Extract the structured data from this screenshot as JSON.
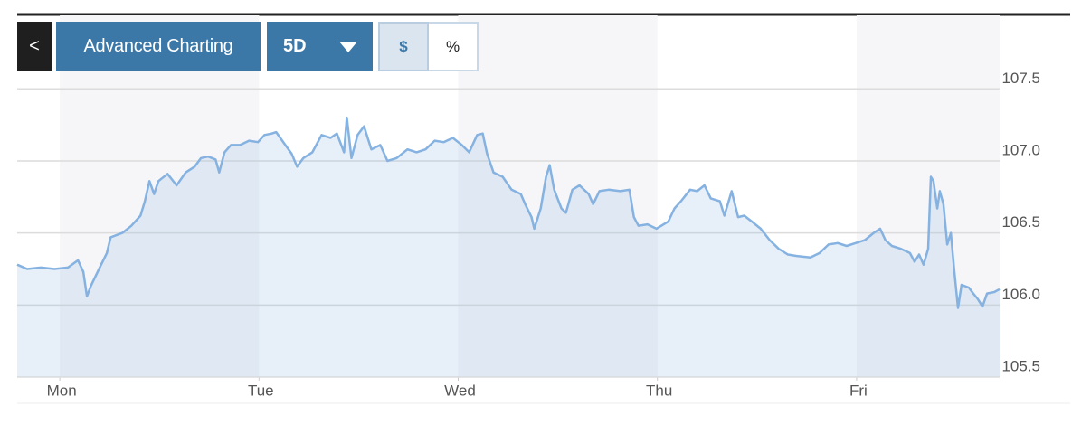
{
  "toolbar": {
    "back": "<",
    "advanced": "Advanced Charting",
    "range": "5D",
    "dollar": "$",
    "percent": "%"
  },
  "chart_data": {
    "type": "line",
    "color": "#85b2e0",
    "grid": true,
    "x": [
      -0.214,
      -0.164,
      -0.095,
      -0.027,
      0.041,
      0.091,
      0.118,
      0.136,
      0.155,
      0.2,
      0.236,
      0.255,
      0.314,
      0.359,
      0.405,
      0.427,
      0.45,
      0.473,
      0.495,
      0.541,
      0.586,
      0.632,
      0.677,
      0.709,
      0.745,
      0.782,
      0.8,
      0.827,
      0.859,
      0.905,
      0.95,
      0.995,
      1.027,
      1.064,
      1.086,
      1.132,
      1.164,
      1.191,
      1.223,
      1.268,
      1.314,
      1.359,
      1.391,
      1.427,
      1.441,
      1.464,
      1.495,
      1.527,
      1.564,
      1.609,
      1.645,
      1.691,
      1.745,
      1.791,
      1.836,
      1.882,
      1.927,
      1.973,
      2.018,
      2.055,
      2.095,
      2.123,
      2.145,
      2.177,
      2.223,
      2.268,
      2.314,
      2.336,
      2.368,
      2.382,
      2.414,
      2.441,
      2.459,
      2.482,
      2.518,
      2.541,
      2.573,
      2.609,
      2.655,
      2.677,
      2.709,
      2.755,
      2.814,
      2.859,
      2.882,
      2.905,
      2.95,
      2.995,
      3.055,
      3.086,
      3.118,
      3.164,
      3.2,
      3.236,
      3.268,
      3.314,
      3.336,
      3.373,
      3.405,
      3.436,
      3.473,
      3.518,
      3.564,
      3.609,
      3.655,
      3.7,
      3.768,
      3.814,
      3.859,
      3.905,
      3.95,
      3.995,
      4.041,
      4.086,
      4.118,
      4.145,
      4.177,
      4.223,
      4.268,
      4.291,
      4.314,
      4.336,
      4.359,
      4.373,
      4.386,
      4.405,
      4.418,
      4.436,
      4.455,
      4.473,
      4.491,
      4.509,
      4.527,
      4.564,
      4.586,
      4.609,
      4.632,
      4.655,
      4.691,
      4.718
    ],
    "values": [
      106.28,
      106.25,
      106.26,
      106.25,
      106.26,
      106.31,
      106.23,
      106.06,
      106.13,
      106.26,
      106.36,
      106.47,
      106.5,
      106.55,
      106.62,
      106.72,
      106.86,
      106.77,
      106.86,
      106.91,
      106.83,
      106.92,
      106.96,
      107.02,
      107.03,
      107.01,
      106.92,
      107.06,
      107.11,
      107.11,
      107.14,
      107.13,
      107.18,
      107.19,
      107.2,
      107.11,
      107.05,
      106.96,
      107.02,
      107.06,
      107.18,
      107.16,
      107.19,
      107.06,
      107.3,
      107.02,
      107.18,
      107.24,
      107.08,
      107.11,
      107.0,
      107.02,
      107.08,
      107.06,
      107.08,
      107.14,
      107.13,
      107.16,
      107.11,
      107.06,
      107.18,
      107.19,
      107.05,
      106.92,
      106.89,
      106.8,
      106.77,
      106.7,
      106.61,
      106.53,
      106.67,
      106.89,
      106.97,
      106.8,
      106.67,
      106.64,
      106.8,
      106.83,
      106.77,
      106.7,
      106.79,
      106.8,
      106.79,
      106.8,
      106.61,
      106.55,
      106.56,
      106.53,
      106.58,
      106.67,
      106.72,
      106.8,
      106.79,
      106.83,
      106.74,
      106.72,
      106.62,
      106.79,
      106.61,
      106.62,
      106.58,
      106.53,
      106.45,
      106.39,
      106.35,
      106.34,
      106.33,
      106.36,
      106.42,
      106.43,
      106.41,
      106.43,
      106.45,
      106.5,
      106.53,
      106.45,
      106.41,
      106.39,
      106.36,
      106.3,
      106.35,
      106.28,
      106.39,
      106.89,
      106.86,
      106.67,
      106.79,
      106.7,
      106.42,
      106.5,
      106.23,
      105.98,
      106.14,
      106.12,
      106.08,
      106.04,
      105.99,
      106.08,
      106.09,
      106.11
    ],
    "xlim": [
      -0.214,
      4.718
    ],
    "xticks": [
      {
        "value": 0,
        "label": "Mon"
      },
      {
        "value": 1,
        "label": "Tue"
      },
      {
        "value": 2,
        "label": "Wed"
      },
      {
        "value": 3,
        "label": "Thu"
      },
      {
        "value": 4,
        "label": "Fri"
      }
    ],
    "ylim": [
      105.5,
      108.01
    ],
    "yticks": [
      105.5,
      {
        "value": 106,
        "label": "106.0"
      },
      106.5,
      {
        "value": 107,
        "label": "107.0"
      },
      107.5
    ]
  }
}
